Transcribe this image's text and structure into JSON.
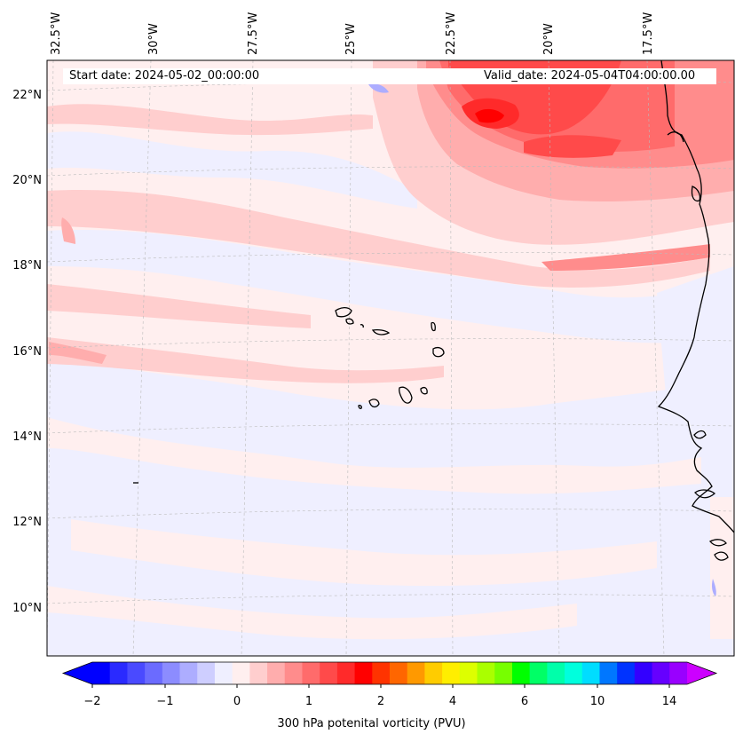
{
  "map": {
    "start_date_label": "Start date: 2024-05-02_00:00:00",
    "valid_date_label": "Valid_date: 2024-05-04T04:00:00.00",
    "lon_labels": [
      "32.5°W",
      "30°W",
      "27.5°W",
      "25°W",
      "22.5°W",
      "20°W",
      "17.5°W"
    ],
    "lat_labels": [
      "22°N",
      "20°N",
      "18°N",
      "16°N",
      "14°N",
      "12°N",
      "10°N"
    ],
    "variable": "300 hPa potential vorticity",
    "units": "PVU"
  },
  "colorbar": {
    "title": "300 hPa potenital vorticity (PVU)",
    "tick_labels": [
      "−2",
      "−1",
      "0",
      "1",
      "2",
      "4",
      "6",
      "10",
      "14"
    ],
    "colors": [
      "#0000ff",
      "#2a2aff",
      "#4a4aff",
      "#6b6bff",
      "#8c8cff",
      "#adadff",
      "#ceceff",
      "#efefff",
      "#ffefef",
      "#ffcece",
      "#ffadad",
      "#ff8c8c",
      "#ff6b6b",
      "#ff4a4a",
      "#ff2a2a",
      "#ff0000",
      "#ff3300",
      "#ff6600",
      "#ff9900",
      "#ffcc00",
      "#ffee00",
      "#ddff00",
      "#aaff00",
      "#77ff00",
      "#00ff00",
      "#00ff66",
      "#00ffaa",
      "#00ffdd",
      "#00ddff",
      "#0077ff",
      "#0033ff",
      "#3300ff",
      "#6600ff",
      "#9900ff"
    ],
    "extend_low_color": "#0000ff",
    "extend_high_color": "#cc00ff"
  }
}
